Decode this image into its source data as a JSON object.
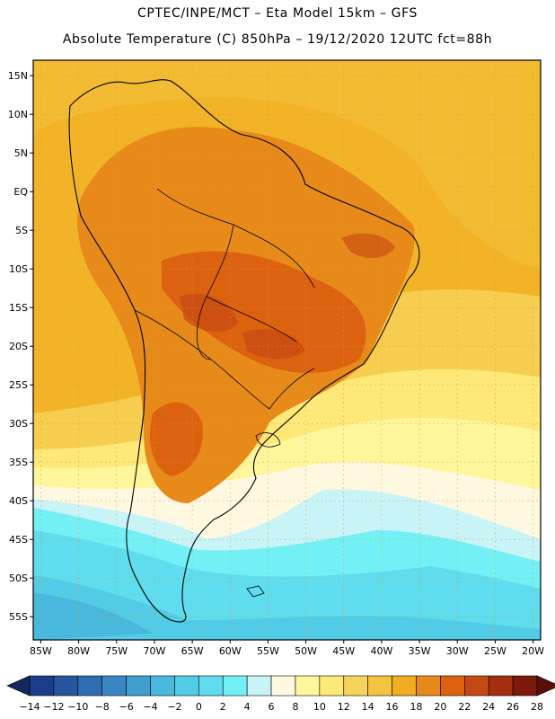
{
  "header": {
    "line1": "CPTEC/INPE/MCT –  Eta Model 15km – GFS",
    "line2": "Absolute Temperature (C) 850hPa – 19/12/2020 12UTC fct=88h"
  },
  "axes": {
    "lat_labels": [
      "15N",
      "10N",
      "5N",
      "EQ",
      "5S",
      "10S",
      "15S",
      "20S",
      "25S",
      "30S",
      "35S",
      "40S",
      "45S",
      "50S",
      "55S"
    ],
    "lat_values": [
      15,
      10,
      5,
      0,
      -5,
      -10,
      -15,
      -20,
      -25,
      -30,
      -35,
      -40,
      -45,
      -50,
      -55
    ],
    "lon_labels": [
      "85W",
      "80W",
      "75W",
      "70W",
      "65W",
      "60W",
      "55W",
      "50W",
      "45W",
      "40W",
      "35W",
      "30W",
      "25W",
      "20W"
    ],
    "lon_values": [
      -85,
      -80,
      -75,
      -70,
      -65,
      -60,
      -55,
      -50,
      -45,
      -40,
      -35,
      -30,
      -25,
      -20
    ],
    "lon_range": [
      -86,
      -19
    ],
    "lat_range": [
      -58,
      17
    ]
  },
  "legend": {
    "ticks": [
      "-14",
      "-12",
      "-10",
      "-8",
      "-6",
      "-4",
      "-2",
      "0",
      "2",
      "4",
      "6",
      "8",
      "10",
      "12",
      "14",
      "16",
      "18",
      "20",
      "22",
      "24",
      "26",
      "28"
    ],
    "colors": [
      "#1c3c8c",
      "#2755a0",
      "#2f6db2",
      "#3a86c4",
      "#3f9fcf",
      "#48b8dc",
      "#52cce6",
      "#5fdcee",
      "#72f0f5",
      "#c8f3f7",
      "#fff8e0",
      "#fff59a",
      "#fde878",
      "#f7d35a",
      "#f3c33f",
      "#f0ad1f",
      "#e88a1a",
      "#dd6210",
      "#c64812",
      "#a52e10",
      "#7d1a0c"
    ],
    "low_arrow_color": "#14285e",
    "high_arrow_color": "#5a0f0a"
  }
}
